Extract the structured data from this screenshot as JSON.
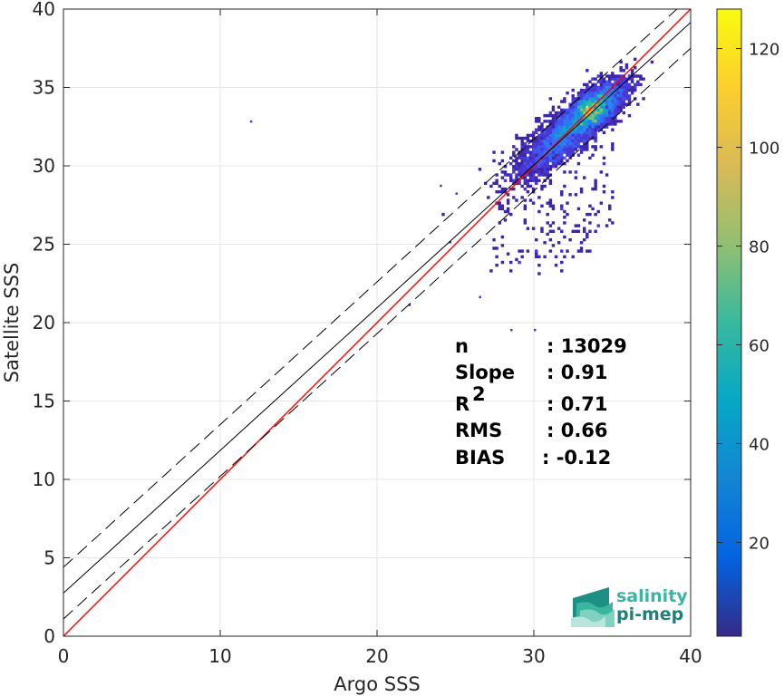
{
  "chart_data": {
    "type": "scatter",
    "subtype": "2d-density-histogram",
    "xlabel": "Argo SSS",
    "ylabel": "Satellite SSS",
    "xlim": [
      0,
      40
    ],
    "ylim": [
      0,
      40
    ],
    "x_ticks": [
      "0",
      "10",
      "20",
      "30",
      "40"
    ],
    "y_ticks": [
      "0",
      "5",
      "10",
      "15",
      "20",
      "25",
      "30",
      "35",
      "40"
    ],
    "grid": true,
    "colorbar": {
      "range": [
        1,
        128
      ],
      "ticks": [
        "20",
        "40",
        "60",
        "80",
        "100",
        "120"
      ],
      "tick_values": [
        20,
        40,
        60,
        80,
        100,
        120
      ],
      "colormap": "parula"
    },
    "lines": [
      {
        "kind": "identity",
        "color": "#ff0000",
        "points": [
          [
            0,
            0
          ],
          [
            40,
            40
          ]
        ]
      },
      {
        "kind": "regression",
        "color": "#000000",
        "style": "solid",
        "points": [
          [
            0,
            2.75
          ],
          [
            40,
            39.15
          ]
        ]
      },
      {
        "kind": "regression-upper",
        "color": "#000000",
        "style": "dashed",
        "points": [
          [
            0,
            4.4
          ],
          [
            40,
            40.8
          ]
        ]
      },
      {
        "kind": "regression-lower",
        "color": "#000000",
        "style": "dashed",
        "points": [
          [
            0,
            1.1
          ],
          [
            40,
            37.5
          ]
        ]
      }
    ],
    "density_peak": {
      "x": 33.2,
      "y": 33.1
    },
    "outliers": [
      {
        "x": 11.9,
        "y": 32.9
      },
      {
        "x": 24.6,
        "y": 25.2
      },
      {
        "x": 24.0,
        "y": 28.8
      },
      {
        "x": 25.0,
        "y": 28.3
      },
      {
        "x": 22.0,
        "y": 21.2
      },
      {
        "x": 26.5,
        "y": 21.7
      },
      {
        "x": 28.5,
        "y": 19.6
      },
      {
        "x": 30.0,
        "y": 19.6
      }
    ],
    "stats": [
      {
        "label": "n",
        "value": ": 13029"
      },
      {
        "label": "Slope",
        "value": ": 0.91"
      },
      {
        "label": "R",
        "sup": "2",
        "value": ": 0.71"
      },
      {
        "label": "RMS",
        "value": ": 0.66"
      },
      {
        "label": "BIAS",
        "value": ": -0.12"
      }
    ]
  },
  "logo": {
    "line1": "salinity",
    "line2": "pi-mep",
    "color1": "#3ab5a0",
    "color2": "#1e7f7a"
  }
}
